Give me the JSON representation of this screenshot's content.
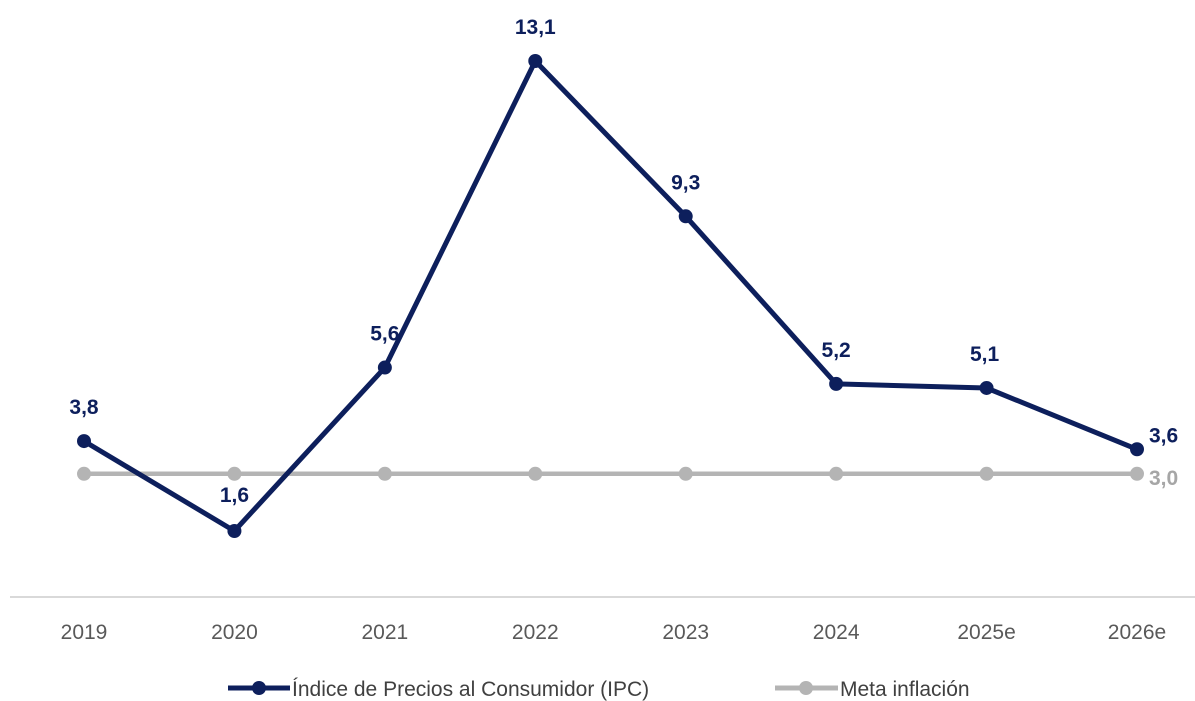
{
  "chart_data": {
    "type": "line",
    "categories": [
      "2019",
      "2020",
      "2021",
      "2022",
      "2023",
      "2024",
      "2025e",
      "2026e"
    ],
    "series": [
      {
        "name": "Índice de Precios al Consumidor (IPC)",
        "values": [
          3.8,
          1.6,
          5.6,
          13.1,
          9.3,
          5.2,
          5.1,
          3.6
        ],
        "labels": [
          "3,8",
          "1,6",
          "5,6",
          "13,1",
          "9,3",
          "5,2",
          "5,1",
          "3,6"
        ],
        "color": "#0d1f5c",
        "label_color": "#0d1f5c"
      },
      {
        "name": "Meta inflación",
        "values": [
          3.0,
          3.0,
          3.0,
          3.0,
          3.0,
          3.0,
          3.0,
          3.0
        ],
        "labels": [
          "",
          "",
          "",
          "",
          "",
          "",
          "",
          "3,0"
        ],
        "color": "#b4b4b4",
        "label_color": "#a6a6a6"
      }
    ],
    "title": "",
    "xlabel": "",
    "ylabel": "",
    "ylim": [
      0,
      14
    ],
    "grid": false,
    "legend_position": "bottom"
  }
}
